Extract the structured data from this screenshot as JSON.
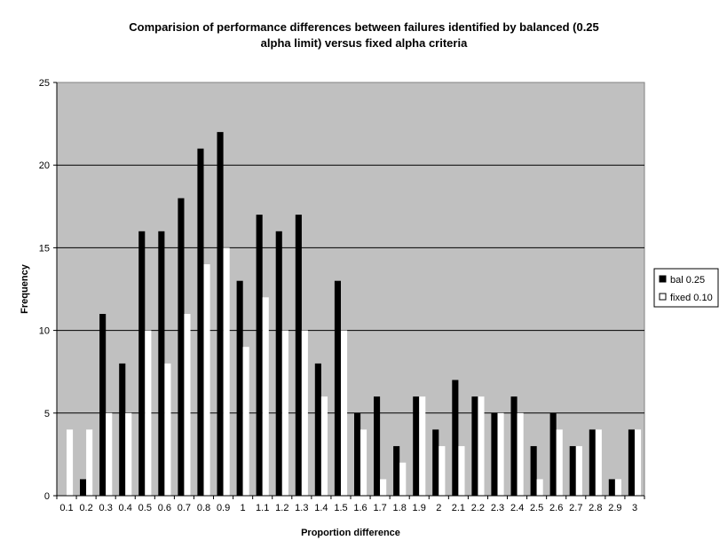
{
  "chart_data": {
    "type": "bar",
    "title_line1": "Comparision of performance differences between failures identified by balanced (0.25",
    "title_line2": "alpha limit) versus fixed alpha criteria",
    "xlabel": "Proportion difference",
    "ylabel": "Frequency",
    "ylim": [
      0,
      25
    ],
    "yticks": [
      "0",
      "5",
      "10",
      "15",
      "20",
      "25"
    ],
    "grid": true,
    "legend_position": "right",
    "plot_background": "#c0c0c0",
    "categories": [
      "0.1",
      "0.2",
      "0.3",
      "0.4",
      "0.5",
      "0.6",
      "0.7",
      "0.8",
      "0.9",
      "1",
      "1.1",
      "1.2",
      "1.3",
      "1.4",
      "1.5",
      "1.6",
      "1.7",
      "1.8",
      "1.9",
      "2",
      "2.1",
      "2.2",
      "2.3",
      "2.4",
      "2.5",
      "2.6",
      "2.7",
      "2.8",
      "2.9",
      "3"
    ],
    "series": [
      {
        "name": "bal 0.25",
        "color": "#000000",
        "values": [
          0,
          1,
          11,
          8,
          16,
          16,
          18,
          21,
          22,
          13,
          17,
          16,
          17,
          8,
          13,
          5,
          6,
          3,
          6,
          4,
          7,
          6,
          5,
          6,
          3,
          5,
          3,
          4,
          1,
          4
        ]
      },
      {
        "name": "fixed 0.10",
        "color": "#ffffff",
        "values": [
          4,
          4,
          5,
          5,
          10,
          8,
          11,
          14,
          15,
          9,
          12,
          10,
          10,
          6,
          10,
          4,
          1,
          2,
          6,
          3,
          3,
          6,
          5,
          5,
          1,
          4,
          3,
          4,
          1,
          4
        ]
      }
    ]
  }
}
